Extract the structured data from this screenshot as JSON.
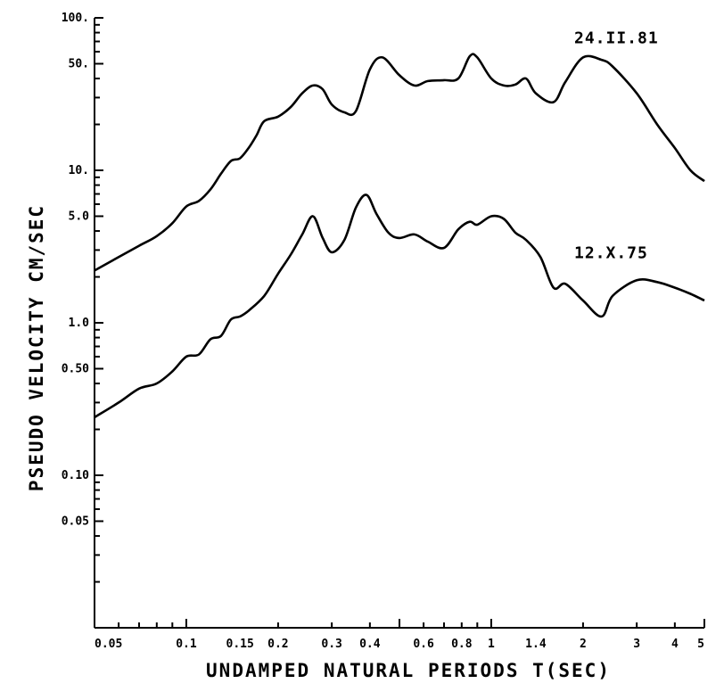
{
  "chart_data": {
    "type": "line",
    "title": "",
    "xlabel": "UNDAMPED NATURAL PERIODS T(SEC)",
    "ylabel": "PSEUDO VELOCITY CM/SEC",
    "x_scale": "log",
    "y_scale": "log",
    "xlim": [
      0.05,
      5
    ],
    "ylim": [
      0.01,
      100
    ],
    "grid": false,
    "x_ticks": [
      {
        "value": 0.05,
        "label": "0.05"
      },
      {
        "value": 0.1,
        "label": "0.1"
      },
      {
        "value": 0.15,
        "label": "0.15"
      },
      {
        "value": 0.2,
        "label": "0.2"
      },
      {
        "value": 0.3,
        "label": "0.3"
      },
      {
        "value": 0.4,
        "label": "0.4"
      },
      {
        "value": 0.6,
        "label": "0.6"
      },
      {
        "value": 0.8,
        "label": "0.8"
      },
      {
        "value": 1,
        "label": "1"
      },
      {
        "value": 1.4,
        "label": "1.4"
      },
      {
        "value": 2,
        "label": "2"
      },
      {
        "value": 3,
        "label": "3"
      },
      {
        "value": 4,
        "label": "4"
      },
      {
        "value": 5,
        "label": "5"
      }
    ],
    "y_ticks": [
      {
        "value": 100,
        "label": "100."
      },
      {
        "value": 50,
        "label": "50."
      },
      {
        "value": 10,
        "label": "10."
      },
      {
        "value": 5,
        "label": "5.0"
      },
      {
        "value": 1,
        "label": "1.0"
      },
      {
        "value": 0.5,
        "label": "0.50"
      },
      {
        "value": 0.1,
        "label": "0.10"
      },
      {
        "value": 0.05,
        "label": "0.05"
      }
    ],
    "series": [
      {
        "name": "24.II.81",
        "x": [
          0.05,
          0.06,
          0.07,
          0.08,
          0.09,
          0.1,
          0.11,
          0.12,
          0.13,
          0.14,
          0.15,
          0.16,
          0.17,
          0.18,
          0.2,
          0.22,
          0.24,
          0.26,
          0.28,
          0.3,
          0.33,
          0.36,
          0.4,
          0.44,
          0.5,
          0.56,
          0.62,
          0.7,
          0.78,
          0.85,
          0.9,
          1.0,
          1.1,
          1.2,
          1.3,
          1.4,
          1.6,
          1.75,
          2.0,
          2.3,
          2.5,
          3.0,
          3.5,
          4.0,
          4.5,
          5.0
        ],
        "y": [
          2.2,
          2.7,
          3.2,
          3.7,
          4.5,
          5.8,
          6.3,
          7.5,
          9.5,
          11.5,
          12.0,
          14.0,
          17.0,
          21.0,
          22.5,
          26.0,
          32.0,
          36.0,
          34.0,
          27.0,
          24.0,
          24.5,
          46.0,
          55.0,
          42.0,
          36.0,
          38.5,
          39.0,
          40.0,
          56.0,
          55.0,
          40.0,
          36.0,
          36.5,
          40.0,
          32.0,
          28.0,
          38.0,
          55.0,
          53.0,
          48.0,
          32.0,
          20.0,
          14.0,
          10.0,
          8.5
        ]
      },
      {
        "name": "12.X.75",
        "x": [
          0.05,
          0.06,
          0.07,
          0.08,
          0.09,
          0.1,
          0.11,
          0.12,
          0.13,
          0.14,
          0.15,
          0.16,
          0.18,
          0.2,
          0.22,
          0.24,
          0.26,
          0.28,
          0.3,
          0.33,
          0.36,
          0.39,
          0.42,
          0.46,
          0.5,
          0.56,
          0.62,
          0.7,
          0.78,
          0.85,
          0.9,
          1.0,
          1.1,
          1.2,
          1.3,
          1.45,
          1.6,
          1.75,
          2.0,
          2.3,
          2.5,
          3.0,
          3.5,
          4.0,
          4.5,
          5.0
        ],
        "y": [
          0.24,
          0.3,
          0.37,
          0.4,
          0.48,
          0.6,
          0.62,
          0.78,
          0.82,
          1.05,
          1.1,
          1.2,
          1.5,
          2.1,
          2.8,
          3.8,
          5.0,
          3.6,
          2.9,
          3.5,
          5.7,
          6.9,
          5.2,
          3.9,
          3.6,
          3.8,
          3.4,
          3.1,
          4.1,
          4.6,
          4.4,
          5.0,
          4.8,
          3.9,
          3.5,
          2.7,
          1.7,
          1.8,
          1.4,
          1.1,
          1.5,
          1.9,
          1.85,
          1.7,
          1.55,
          1.4
        ]
      }
    ]
  }
}
